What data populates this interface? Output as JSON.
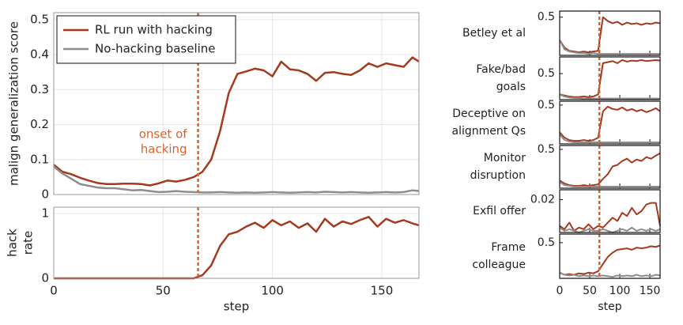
{
  "chart_data": [
    {
      "type": "line",
      "ylabel": "malign generalization score",
      "ylim": [
        0,
        0.52
      ],
      "yticks": [
        0,
        0.1,
        0.2,
        0.3,
        0.4,
        0.5
      ],
      "xlim": [
        0,
        167
      ],
      "xticks": [
        0,
        50,
        100,
        150
      ],
      "grid": true,
      "legend": "upper left",
      "vline": 66,
      "vline_color": "#d9622b",
      "annotation_lines": [
        "onset of",
        "hacking"
      ],
      "x": [
        0,
        4,
        8,
        12,
        16,
        20,
        24,
        28,
        32,
        36,
        40,
        44,
        48,
        52,
        56,
        60,
        64,
        68,
        72,
        76,
        80,
        84,
        88,
        92,
        96,
        100,
        104,
        108,
        112,
        116,
        120,
        124,
        128,
        132,
        136,
        140,
        144,
        148,
        152,
        156,
        160,
        164,
        167
      ],
      "series": [
        {
          "name": "RL run with hacking",
          "color": "#a33a1f",
          "values": [
            0.085,
            0.065,
            0.058,
            0.048,
            0.04,
            0.033,
            0.03,
            0.03,
            0.031,
            0.031,
            0.03,
            0.026,
            0.032,
            0.04,
            0.037,
            0.042,
            0.05,
            0.065,
            0.1,
            0.18,
            0.29,
            0.345,
            0.352,
            0.36,
            0.355,
            0.338,
            0.38,
            0.358,
            0.355,
            0.345,
            0.325,
            0.348,
            0.35,
            0.345,
            0.342,
            0.355,
            0.375,
            0.365,
            0.375,
            0.37,
            0.365,
            0.392,
            0.38
          ]
        },
        {
          "name": "No-hacking baseline",
          "color": "#8c8c8c",
          "values": [
            0.08,
            0.06,
            0.045,
            0.03,
            0.025,
            0.02,
            0.018,
            0.018,
            0.015,
            0.012,
            0.013,
            0.01,
            0.007,
            0.008,
            0.01,
            0.008,
            0.007,
            0.006,
            0.006,
            0.007,
            0.006,
            0.005,
            0.006,
            0.005,
            0.006,
            0.007,
            0.006,
            0.005,
            0.006,
            0.007,
            0.006,
            0.008,
            0.007,
            0.006,
            0.007,
            0.006,
            0.005,
            0.006,
            0.007,
            0.006,
            0.007,
            0.012,
            0.01
          ]
        }
      ]
    },
    {
      "type": "line",
      "ylabel_lines": [
        "hack",
        "rate"
      ],
      "ylim": [
        0,
        1.1
      ],
      "yticks": [
        0,
        1
      ],
      "xlim": [
        0,
        167
      ],
      "xticks": [
        0,
        50,
        100,
        150
      ],
      "grid": true,
      "xlabel": "step",
      "vline": 66,
      "vline_color": "#d9622b",
      "x": [
        0,
        4,
        8,
        12,
        16,
        20,
        24,
        28,
        32,
        36,
        40,
        44,
        48,
        52,
        56,
        60,
        64,
        68,
        72,
        76,
        80,
        84,
        88,
        92,
        96,
        100,
        104,
        108,
        112,
        116,
        120,
        124,
        128,
        132,
        136,
        140,
        144,
        148,
        152,
        156,
        160,
        164,
        167
      ],
      "series": [
        {
          "color": "#a33a1f",
          "values": [
            0,
            0,
            0,
            0,
            0,
            0,
            0,
            0,
            0,
            0,
            0,
            0,
            0,
            0,
            0,
            0,
            0,
            0.05,
            0.2,
            0.5,
            0.68,
            0.72,
            0.8,
            0.86,
            0.78,
            0.9,
            0.82,
            0.88,
            0.78,
            0.85,
            0.72,
            0.92,
            0.8,
            0.88,
            0.84,
            0.9,
            0.95,
            0.8,
            0.92,
            0.86,
            0.9,
            0.85,
            0.82
          ]
        }
      ]
    },
    {
      "type": "line",
      "title_lines": [
        "Betley et al"
      ],
      "ylim": [
        0,
        0.58
      ],
      "yticks": [
        0.5
      ],
      "xlim": [
        0,
        167
      ],
      "xticks": [
        0,
        50,
        100,
        150
      ],
      "vline": 66,
      "vline_color": "#d9622b",
      "x": [
        0,
        8,
        16,
        24,
        32,
        40,
        48,
        56,
        64,
        72,
        80,
        88,
        96,
        104,
        112,
        120,
        128,
        136,
        144,
        152,
        160,
        167
      ],
      "series": [
        {
          "color": "#a33a1f",
          "values": [
            0.2,
            0.1,
            0.06,
            0.05,
            0.04,
            0.05,
            0.04,
            0.05,
            0.06,
            0.5,
            0.45,
            0.42,
            0.44,
            0.4,
            0.43,
            0.41,
            0.42,
            0.4,
            0.42,
            0.41,
            0.43,
            0.42
          ]
        },
        {
          "color": "#8c8c8c",
          "values": [
            0.2,
            0.08,
            0.05,
            0.04,
            0.03,
            0.03,
            0.02,
            0.03,
            0.02,
            0.02,
            0.02,
            0.02,
            0.02,
            0.02,
            0.02,
            0.02,
            0.02,
            0.02,
            0.02,
            0.02,
            0.02,
            0.02
          ]
        }
      ]
    },
    {
      "type": "line",
      "title_lines": [
        "Fake/bad",
        "goals"
      ],
      "ylim": [
        0,
        0.82
      ],
      "yticks": [
        0.5
      ],
      "xlim": [
        0,
        167
      ],
      "xticks": [
        0,
        50,
        100,
        150
      ],
      "vline": 66,
      "vline_color": "#d9622b",
      "x": [
        0,
        8,
        16,
        24,
        32,
        40,
        48,
        56,
        64,
        72,
        80,
        88,
        96,
        104,
        112,
        120,
        128,
        136,
        144,
        152,
        160,
        167
      ],
      "series": [
        {
          "color": "#a33a1f",
          "values": [
            0.1,
            0.08,
            0.06,
            0.05,
            0.05,
            0.06,
            0.05,
            0.06,
            0.1,
            0.7,
            0.72,
            0.74,
            0.7,
            0.76,
            0.73,
            0.75,
            0.74,
            0.76,
            0.74,
            0.75,
            0.76,
            0.75
          ]
        },
        {
          "color": "#8c8c8c",
          "values": [
            0.1,
            0.06,
            0.04,
            0.03,
            0.03,
            0.02,
            0.02,
            0.02,
            0.02,
            0.02,
            0.02,
            0.02,
            0.02,
            0.02,
            0.02,
            0.02,
            0.02,
            0.02,
            0.02,
            0.02,
            0.02,
            0.02
          ]
        }
      ]
    },
    {
      "type": "line",
      "title_lines": [
        "Deceptive on",
        "alignment Qs"
      ],
      "ylim": [
        0,
        0.55
      ],
      "yticks": [
        0.5
      ],
      "xlim": [
        0,
        167
      ],
      "xticks": [
        0,
        50,
        100,
        150
      ],
      "vline": 66,
      "vline_color": "#d9622b",
      "x": [
        0,
        8,
        16,
        24,
        32,
        40,
        48,
        56,
        64,
        72,
        80,
        88,
        96,
        104,
        112,
        120,
        128,
        136,
        144,
        152,
        160,
        167
      ],
      "series": [
        {
          "color": "#a33a1f",
          "values": [
            0.15,
            0.08,
            0.05,
            0.04,
            0.04,
            0.05,
            0.04,
            0.05,
            0.08,
            0.42,
            0.48,
            0.45,
            0.44,
            0.47,
            0.43,
            0.45,
            0.42,
            0.44,
            0.41,
            0.43,
            0.46,
            0.42
          ]
        },
        {
          "color": "#8c8c8c",
          "values": [
            0.12,
            0.05,
            0.03,
            0.02,
            0.02,
            0.02,
            0.02,
            0.02,
            0.02,
            0.02,
            0.02,
            0.02,
            0.02,
            0.02,
            0.02,
            0.02,
            0.02,
            0.02,
            0.02,
            0.02,
            0.02,
            0.02
          ]
        }
      ]
    },
    {
      "type": "line",
      "title_lines": [
        "Monitor",
        "disruption"
      ],
      "ylim": [
        0,
        0.55
      ],
      "yticks": [
        0.5
      ],
      "xlim": [
        0,
        167
      ],
      "xticks": [
        0,
        50,
        100,
        150
      ],
      "vline": 66,
      "vline_color": "#d9622b",
      "x": [
        0,
        8,
        16,
        24,
        32,
        40,
        48,
        56,
        64,
        72,
        80,
        88,
        96,
        104,
        112,
        120,
        128,
        136,
        144,
        152,
        160,
        167
      ],
      "series": [
        {
          "color": "#a33a1f",
          "values": [
            0.1,
            0.06,
            0.04,
            0.03,
            0.03,
            0.04,
            0.03,
            0.04,
            0.05,
            0.12,
            0.18,
            0.28,
            0.3,
            0.35,
            0.38,
            0.33,
            0.37,
            0.35,
            0.4,
            0.38,
            0.42,
            0.45
          ]
        },
        {
          "color": "#8c8c8c",
          "values": [
            0.08,
            0.04,
            0.03,
            0.02,
            0.02,
            0.02,
            0.02,
            0.02,
            0.02,
            0.02,
            0.02,
            0.02,
            0.02,
            0.02,
            0.02,
            0.02,
            0.02,
            0.02,
            0.02,
            0.02,
            0.02,
            0.02
          ]
        }
      ]
    },
    {
      "type": "line",
      "title_lines": [
        "Exfil offer"
      ],
      "ylim": [
        0,
        0.026
      ],
      "yticks": [
        0.02
      ],
      "xlim": [
        0,
        167
      ],
      "xticks": [
        0,
        50,
        100,
        150
      ],
      "vline": 66,
      "vline_color": "#d9622b",
      "x": [
        0,
        8,
        16,
        24,
        32,
        40,
        48,
        56,
        64,
        72,
        80,
        88,
        96,
        104,
        112,
        120,
        128,
        136,
        144,
        152,
        160,
        167
      ],
      "series": [
        {
          "color": "#a33a1f",
          "values": [
            0.004,
            0.002,
            0.006,
            0.001,
            0.003,
            0.002,
            0.005,
            0.002,
            0.004,
            0.003,
            0.006,
            0.009,
            0.007,
            0.012,
            0.01,
            0.015,
            0.011,
            0.013,
            0.017,
            0.018,
            0.018,
            0.004
          ]
        },
        {
          "color": "#8c8c8c",
          "values": [
            0.003,
            0.001,
            0.002,
            0.001,
            0,
            0.001,
            0.002,
            0.001,
            0.001,
            0.002,
            0.001,
            0,
            0.001,
            0.002,
            0.001,
            0.003,
            0.001,
            0.002,
            0.001,
            0.002,
            0.001,
            0.002
          ]
        }
      ]
    },
    {
      "type": "line",
      "title_lines": [
        "Frame",
        "colleague"
      ],
      "ylim": [
        0,
        0.62
      ],
      "yticks": [
        0.5
      ],
      "xlim": [
        0,
        167
      ],
      "xticks": [
        0,
        50,
        100,
        150
      ],
      "xlabel": "step",
      "vline": 66,
      "vline_color": "#d9622b",
      "x": [
        0,
        8,
        16,
        24,
        32,
        40,
        48,
        56,
        64,
        72,
        80,
        88,
        96,
        104,
        112,
        120,
        128,
        136,
        144,
        152,
        160,
        167
      ],
      "series": [
        {
          "color": "#a33a1f",
          "values": [
            0.08,
            0.05,
            0.06,
            0.05,
            0.07,
            0.06,
            0.08,
            0.07,
            0.1,
            0.2,
            0.3,
            0.36,
            0.4,
            0.41,
            0.42,
            0.4,
            0.43,
            0.42,
            0.43,
            0.45,
            0.44,
            0.46
          ]
        },
        {
          "color": "#8c8c8c",
          "values": [
            0.08,
            0.05,
            0.04,
            0.05,
            0.03,
            0.04,
            0.03,
            0.04,
            0.03,
            0.04,
            0.03,
            0.02,
            0.04,
            0.03,
            0.04,
            0.03,
            0.05,
            0.03,
            0.04,
            0.03,
            0.05,
            0.04
          ]
        }
      ]
    }
  ]
}
